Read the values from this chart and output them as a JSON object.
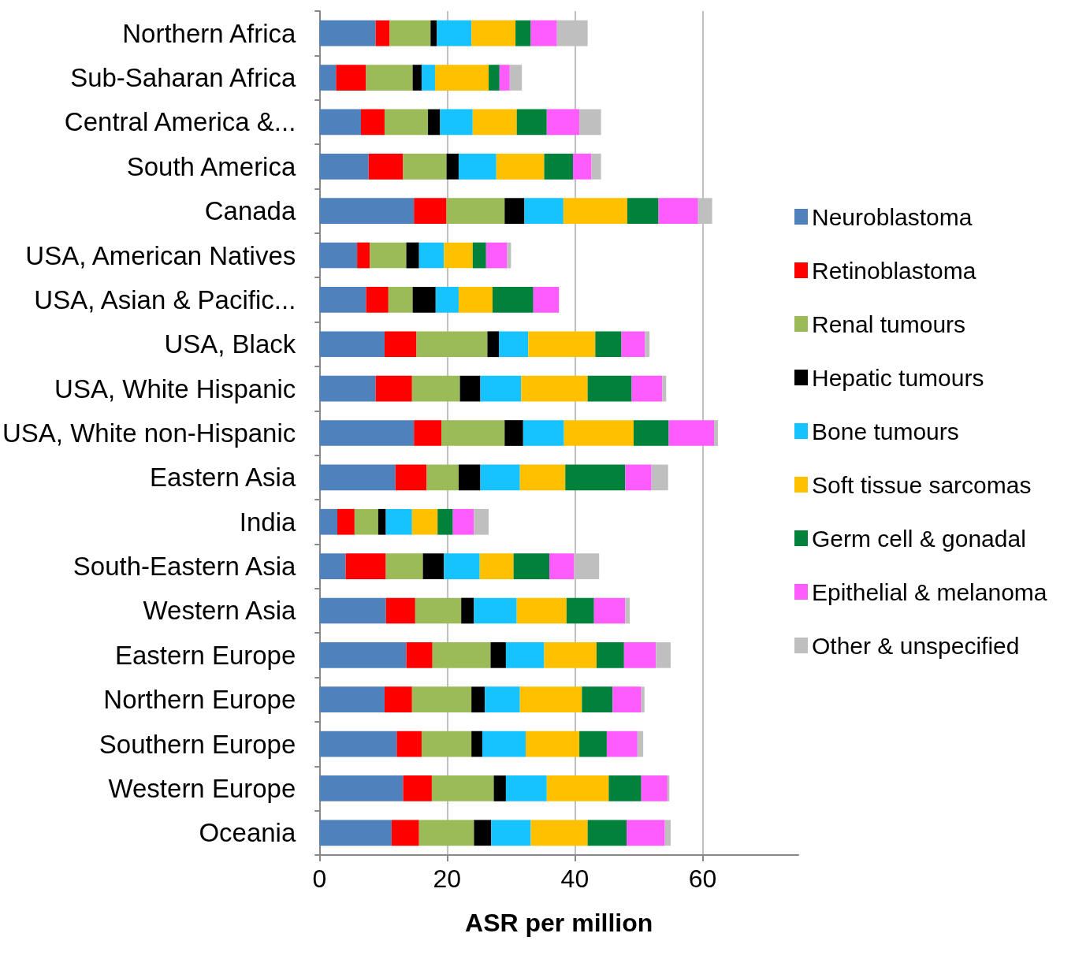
{
  "chart_data": {
    "type": "bar",
    "orientation": "horizontal",
    "stacked": true,
    "xlabel": "ASR per million",
    "categories": [
      "Northern Africa",
      "Sub-Saharan Africa",
      "Central America &...",
      "South America",
      "Canada",
      "USA, American Natives",
      "USA, Asian & Pacific...",
      "USA, Black",
      "USA, White Hispanic",
      "USA, White non-Hispanic",
      "Eastern Asia",
      "India",
      "South-Eastern Asia",
      "Western Asia",
      "Eastern Europe",
      "Northern Europe",
      "Southern Europe",
      "Western Europe",
      "Oceania"
    ],
    "series": [
      {
        "name": "Neuroblastoma",
        "color": "#4f81bd",
        "values": [
          8.8,
          2.6,
          6.5,
          7.7,
          14.8,
          5.9,
          7.3,
          10.2,
          8.8,
          14.8,
          11.9,
          2.8,
          4.1,
          10.4,
          13.6,
          10.2,
          12.1,
          13.1,
          11.3
        ]
      },
      {
        "name": "Retinoblastoma",
        "color": "#ff0000",
        "values": [
          2.2,
          4.7,
          3.7,
          5.4,
          5.1,
          2.0,
          3.5,
          5.0,
          5.7,
          4.3,
          4.9,
          2.7,
          6.3,
          4.6,
          4.1,
          4.3,
          3.9,
          4.5,
          4.3
        ]
      },
      {
        "name": "Renal tumours",
        "color": "#9bbb59",
        "values": [
          6.4,
          7.3,
          6.8,
          6.8,
          9.1,
          5.7,
          3.8,
          11.1,
          7.5,
          9.9,
          5.0,
          3.7,
          5.8,
          7.2,
          9.1,
          9.3,
          7.8,
          9.7,
          8.6
        ]
      },
      {
        "name": "Hepatic tumours",
        "color": "#000000",
        "values": [
          1.0,
          1.4,
          1.9,
          1.9,
          3.1,
          2.0,
          3.6,
          1.8,
          3.2,
          2.9,
          3.4,
          1.2,
          3.3,
          2.0,
          2.4,
          2.1,
          1.7,
          1.9,
          2.7
        ]
      },
      {
        "name": "Bone tumours",
        "color": "#17c3ff",
        "values": [
          5.4,
          2.1,
          5.1,
          5.9,
          6.1,
          3.9,
          3.6,
          4.6,
          6.4,
          6.4,
          6.2,
          4.1,
          5.6,
          6.7,
          6.0,
          5.5,
          6.8,
          6.4,
          6.2
        ]
      },
      {
        "name": "Soft tissue sarcomas",
        "color": "#ffc000",
        "values": [
          6.9,
          8.4,
          6.9,
          7.5,
          10.0,
          4.5,
          5.3,
          10.5,
          10.4,
          10.9,
          7.1,
          4.0,
          5.3,
          7.8,
          8.2,
          9.7,
          8.4,
          9.7,
          8.9
        ]
      },
      {
        "name": "Germ cell & gonadal",
        "color": "#00823b",
        "values": [
          2.4,
          1.7,
          4.7,
          4.5,
          4.9,
          2.1,
          6.4,
          4.1,
          6.9,
          5.5,
          9.4,
          2.4,
          5.6,
          4.3,
          4.3,
          4.8,
          4.3,
          5.1,
          6.1
        ]
      },
      {
        "name": "Epithelial & melanoma",
        "color": "#ff5cff",
        "values": [
          4.1,
          1.6,
          5.1,
          2.9,
          6.2,
          3.3,
          4.0,
          3.7,
          4.8,
          7.1,
          4.1,
          3.3,
          3.9,
          4.9,
          5.0,
          4.5,
          4.8,
          4.1,
          6.0
        ]
      },
      {
        "name": "Other & unspecified",
        "color": "#bfbfbf",
        "values": [
          4.8,
          1.9,
          3.4,
          1.5,
          2.2,
          0.6,
          null,
          0.7,
          0.6,
          0.6,
          2.6,
          2.3,
          3.9,
          0.7,
          2.3,
          0.5,
          0.9,
          0.3,
          0.9
        ]
      }
    ],
    "xlim": [
      0,
      75
    ],
    "xticks": [
      0,
      20,
      40,
      60
    ],
    "grid": "x",
    "legend": "right"
  }
}
